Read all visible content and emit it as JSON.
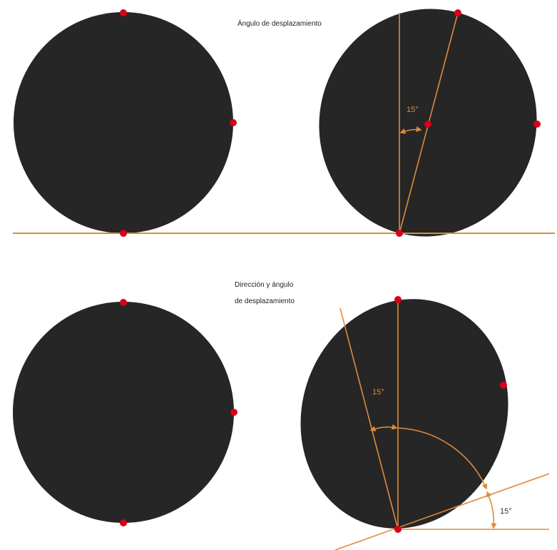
{
  "captions": {
    "top": "Ángulo de desplazamiento",
    "bottom_line1": "Dirección y ángulo",
    "bottom_line2": "de desplazamiento"
  },
  "angles": {
    "top_right": "15°",
    "bottom_vertical": "15°",
    "bottom_base": "15°"
  },
  "colors": {
    "shape": "#262626",
    "guide": "#e08a3c",
    "point": "#d8001a",
    "background": "#ffffff"
  }
}
